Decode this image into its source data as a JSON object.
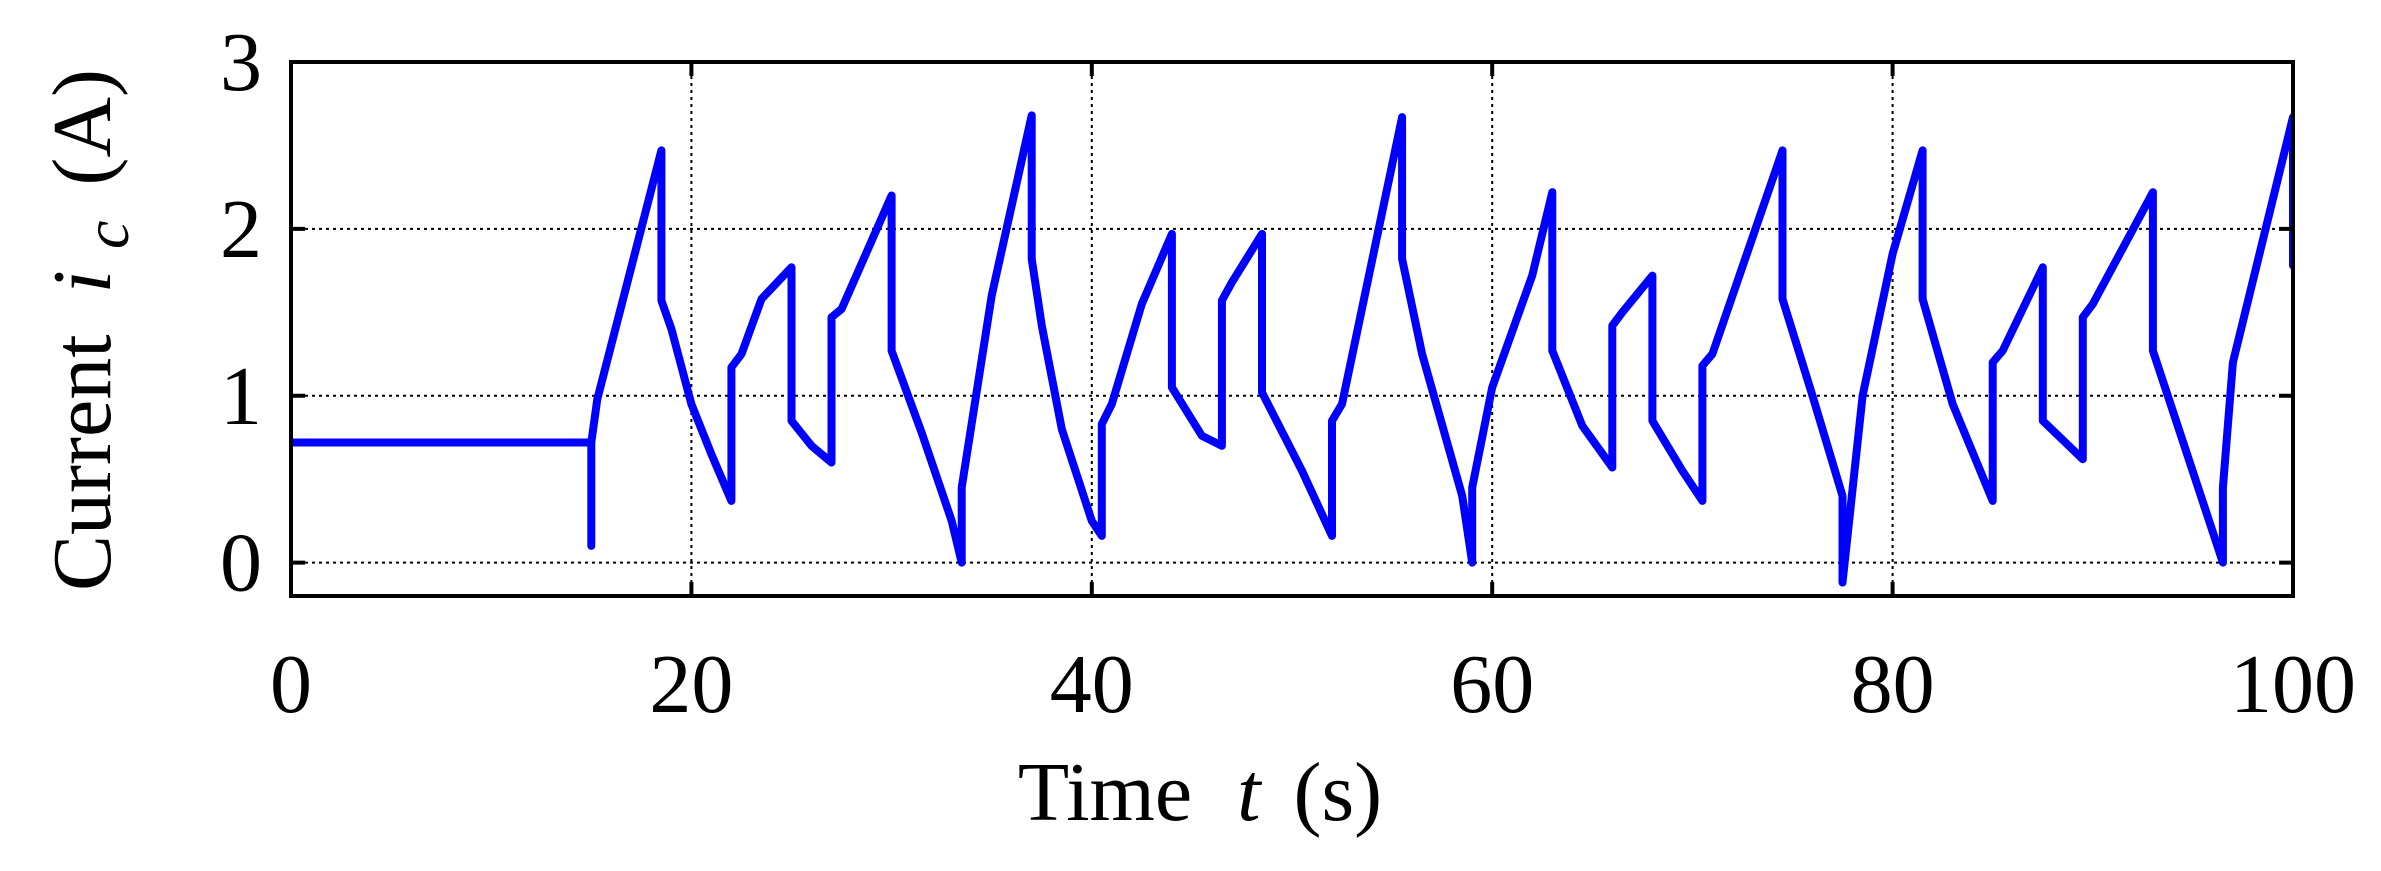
{
  "chart_data": {
    "type": "line",
    "title": "",
    "xlabel": {
      "prefix": "Time",
      "variable": "t",
      "unit": "(s)"
    },
    "ylabel": {
      "prefix": "Current",
      "variable": "i",
      "subscript": "c",
      "unit": "(A)"
    },
    "xlim": [
      0,
      100
    ],
    "ylim": [
      -0.2,
      3
    ],
    "x_ticks": [
      0,
      20,
      40,
      60,
      80,
      100
    ],
    "y_ticks": [
      0,
      1,
      2,
      3
    ],
    "x_tick_labels": [
      "0",
      "20",
      "40",
      "60",
      "80",
      "100"
    ],
    "y_tick_labels": [
      "0",
      "1",
      "2",
      "3"
    ],
    "grid": true,
    "legend": "none",
    "series": [
      {
        "color": "#0000ff",
        "x": [
          0,
          15,
          15,
          15,
          15.3,
          18.5,
          18.5,
          19,
          20,
          21,
          22,
          22,
          22.5,
          23.5,
          25,
          25,
          26,
          27,
          27,
          27.5,
          30,
          30,
          31.5,
          33,
          33.5,
          33.5,
          35,
          37,
          37,
          37.5,
          38.5,
          40,
          40.5,
          40.5,
          41,
          42.5,
          44,
          44,
          45.5,
          46.5,
          46.5,
          47,
          48.5,
          48.5,
          50.5,
          52,
          52,
          52.5,
          55.5,
          55.5,
          56.5,
          58.5,
          59,
          59,
          60,
          62,
          63,
          63,
          64.5,
          66,
          66,
          66.5,
          68,
          68,
          69.5,
          70.5,
          70.5,
          71,
          74.5,
          74.5,
          76,
          77.5,
          77.5,
          78.5,
          80,
          81.5,
          81.5,
          83,
          85,
          85,
          85.5,
          87.5,
          87.5,
          89.5,
          89.5,
          90,
          93,
          93,
          96.5,
          96.5,
          97,
          100,
          100
        ],
        "y": [
          0.72,
          0.72,
          0.1,
          0.72,
          0.98,
          2.47,
          1.57,
          1.4,
          0.95,
          0.65,
          0.37,
          1.17,
          1.25,
          1.58,
          1.77,
          0.85,
          0.7,
          0.6,
          1.47,
          1.52,
          2.2,
          1.27,
          0.78,
          0.25,
          0.0,
          0.45,
          1.6,
          2.68,
          1.82,
          1.42,
          0.8,
          0.25,
          0.16,
          0.83,
          0.95,
          1.55,
          1.97,
          1.05,
          0.76,
          0.7,
          1.57,
          1.68,
          1.97,
          1.02,
          0.55,
          0.16,
          0.85,
          0.95,
          2.67,
          1.82,
          1.25,
          0.4,
          0.0,
          0.45,
          1.05,
          1.72,
          2.22,
          1.27,
          0.82,
          0.57,
          1.42,
          1.5,
          1.72,
          0.85,
          0.55,
          0.37,
          1.18,
          1.25,
          2.47,
          1.58,
          1.0,
          0.4,
          -0.12,
          1.0,
          1.85,
          2.47,
          1.58,
          0.95,
          0.37,
          1.2,
          1.27,
          1.77,
          0.85,
          0.62,
          1.47,
          1.55,
          2.22,
          1.27,
          0.0,
          0.45,
          1.2,
          2.67,
          1.78
        ]
      }
    ]
  }
}
